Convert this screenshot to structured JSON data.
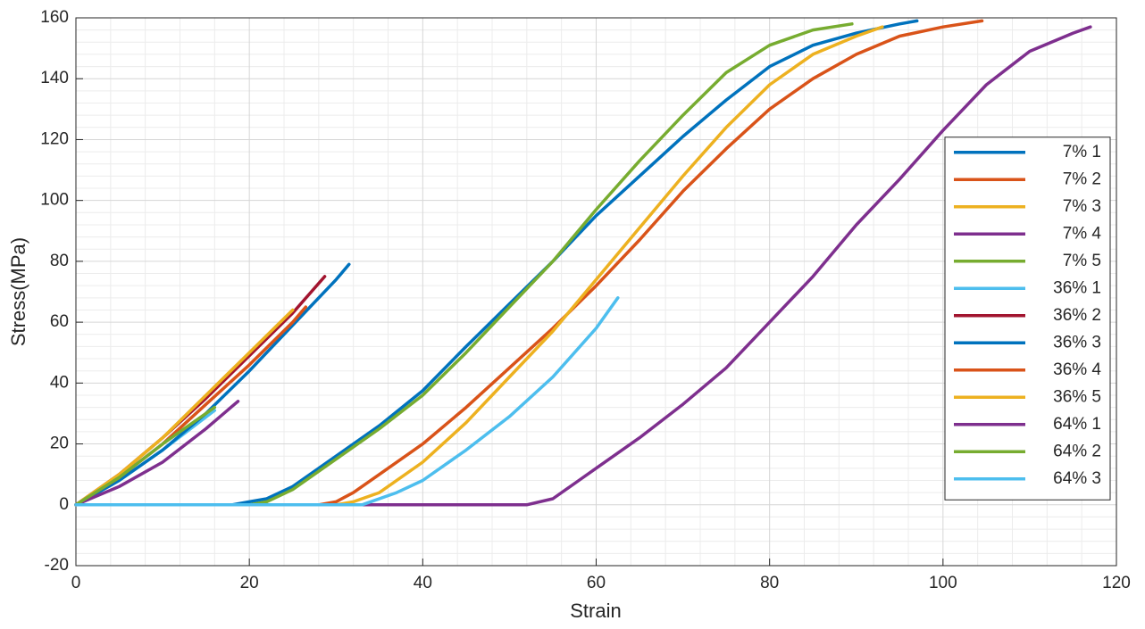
{
  "chart_data": {
    "type": "line",
    "x_label": "Strain",
    "y_label": "Stress(MPa)",
    "xlim": [
      0,
      120
    ],
    "ylim": [
      -20,
      160
    ],
    "xticks": [
      0,
      20,
      40,
      60,
      80,
      100,
      120
    ],
    "yticks": [
      -20,
      0,
      20,
      40,
      60,
      80,
      100,
      120,
      140,
      160
    ],
    "grid": true,
    "minor_grid": true,
    "legend": "east",
    "series": [
      {
        "name": "7% 1",
        "color": "#0072bd",
        "x": [
          0,
          10,
          18,
          20,
          22,
          25,
          30,
          35,
          40,
          45,
          50,
          55,
          60,
          65,
          70,
          75,
          80,
          85,
          90,
          95,
          97
        ],
        "values": [
          0,
          0,
          0,
          1,
          2,
          6,
          16,
          26,
          37.5,
          52,
          66,
          80,
          95,
          108,
          121,
          133,
          144,
          151,
          155,
          158,
          159
        ]
      },
      {
        "name": "7% 2",
        "color": "#d95319",
        "x": [
          0,
          10,
          20,
          28,
          30,
          32,
          35,
          40,
          45,
          50,
          55,
          60,
          65,
          70,
          75,
          80,
          85,
          90,
          95,
          100,
          104.5
        ],
        "values": [
          0,
          0,
          0,
          0,
          1,
          4,
          10,
          20,
          32,
          45,
          58,
          72,
          87,
          103,
          117,
          130,
          140,
          148,
          154,
          157,
          159
        ]
      },
      {
        "name": "7% 3",
        "color": "#edb120",
        "x": [
          0,
          10,
          20,
          30,
          32,
          35,
          40,
          45,
          50,
          55,
          60,
          65,
          70,
          75,
          80,
          85,
          90,
          93
        ],
        "values": [
          0,
          0,
          0,
          0,
          1,
          4,
          14,
          27,
          42,
          57,
          74,
          91,
          108,
          124,
          138,
          148,
          154,
          157
        ]
      },
      {
        "name": "7% 4",
        "color": "#7e2f8e",
        "x": [
          0,
          10,
          20,
          30,
          40,
          52,
          55,
          58,
          60,
          65,
          70,
          75,
          80,
          85,
          90,
          95,
          100,
          105,
          110,
          115,
          117
        ],
        "values": [
          0,
          0,
          0,
          0,
          0,
          0,
          2,
          8,
          12,
          22,
          33,
          45,
          60,
          75,
          92,
          107,
          123,
          138,
          149,
          155,
          157
        ]
      },
      {
        "name": "7% 5",
        "color": "#77ac30",
        "x": [
          0,
          10,
          20,
          22,
          25,
          30,
          35,
          40,
          45,
          50,
          55,
          60,
          65,
          70,
          75,
          80,
          85,
          89.5
        ],
        "values": [
          0,
          0,
          0,
          1,
          5,
          15,
          25,
          36,
          50,
          65,
          80,
          97,
          113,
          128,
          142,
          151,
          156,
          158
        ]
      },
      {
        "name": "36% 1",
        "color": "#4dbeee",
        "x": [
          0,
          5,
          10,
          16
        ],
        "values": [
          0,
          8,
          18,
          31
        ]
      },
      {
        "name": "36% 2",
        "color": "#a2142f",
        "x": [
          0,
          5,
          10,
          15,
          20,
          25,
          28.7
        ],
        "values": [
          0,
          10,
          22,
          35,
          49,
          63,
          75
        ]
      },
      {
        "name": "36% 3",
        "color": "#0072bd",
        "x": [
          0,
          5,
          10,
          15,
          20,
          25,
          30,
          31.5
        ],
        "values": [
          0,
          8,
          18,
          30,
          44,
          59,
          74,
          79
        ]
      },
      {
        "name": "36% 4",
        "color": "#d95319",
        "x": [
          0,
          5,
          10,
          15,
          20,
          25,
          26.5
        ],
        "values": [
          0,
          9,
          20,
          33,
          46,
          60,
          65
        ]
      },
      {
        "name": "36% 5",
        "color": "#edb120",
        "x": [
          0,
          5,
          10,
          15,
          20,
          25
        ],
        "values": [
          0,
          10,
          22,
          36,
          50,
          64
        ]
      },
      {
        "name": "64% 1",
        "color": "#7e2f8e",
        "x": [
          0,
          5,
          10,
          15,
          18.7
        ],
        "values": [
          0,
          6,
          14,
          25,
          34
        ]
      },
      {
        "name": "64% 2",
        "color": "#77ac30",
        "x": [
          0,
          5,
          10,
          16
        ],
        "values": [
          0,
          9,
          20,
          32
        ]
      },
      {
        "name": "64% 3",
        "color": "#4dbeee",
        "x": [
          0,
          10,
          20,
          33,
          37,
          40,
          42,
          45,
          50,
          55,
          60,
          62.5
        ],
        "values": [
          0,
          0,
          0,
          0,
          4,
          8,
          12,
          18,
          29,
          42,
          58,
          68
        ]
      }
    ]
  }
}
